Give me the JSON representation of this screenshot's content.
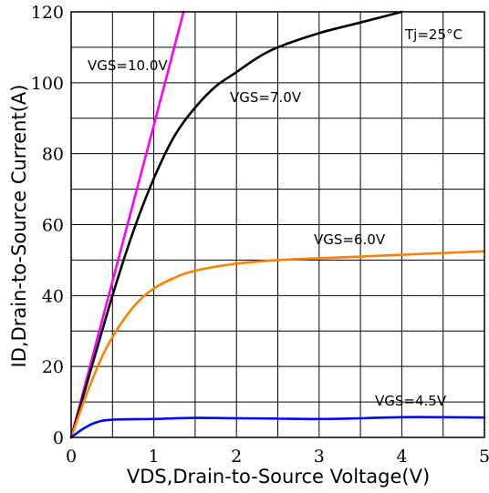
{
  "chart_data": {
    "type": "line",
    "xlabel": "VDS,Drain-to-Source Voltage(V)",
    "ylabel": "ID,Drain-to-Source Current(A)",
    "xlim": [
      0,
      5
    ],
    "ylim": [
      0,
      120
    ],
    "x_ticks": [
      "0",
      "1",
      "2",
      "3",
      "4",
      "5"
    ],
    "y_ticks": [
      "0",
      "20",
      "40",
      "60",
      "80",
      "100",
      "120"
    ],
    "grid": true,
    "annotation": "Tj=25°C",
    "series": [
      {
        "name": "VGS=10.0V",
        "color": "#ff00ff",
        "x": [
          0,
          0.5,
          1.0,
          1.36
        ],
        "y": [
          0,
          44,
          88,
          120
        ]
      },
      {
        "name": "VGS=7.0V",
        "color": "#000000",
        "x": [
          0,
          0.25,
          0.5,
          0.75,
          1.0,
          1.25,
          1.5,
          1.75,
          2.0,
          2.25,
          2.5,
          3.0,
          3.5,
          4.0
        ],
        "y": [
          0,
          20,
          40,
          58,
          73,
          85,
          93,
          99,
          103,
          107,
          110,
          114,
          117,
          120
        ]
      },
      {
        "name": "VGS=6.0V",
        "color": "#ff8000",
        "x": [
          0,
          0.2,
          0.4,
          0.6,
          0.8,
          1.0,
          1.25,
          1.5,
          2.0,
          2.5,
          3.0,
          3.5,
          4.0,
          4.5,
          5.0
        ],
        "y": [
          0,
          13,
          24,
          32,
          38,
          42,
          45,
          47,
          49,
          50,
          50.5,
          51,
          51.5,
          52,
          52.5
        ]
      },
      {
        "name": "VGS=4.5V",
        "color": "#0000ff",
        "x": [
          0,
          0.15,
          0.3,
          0.5,
          1.0,
          1.5,
          2.0,
          2.5,
          3.0,
          3.5,
          4.0,
          4.5,
          5.0
        ],
        "y": [
          0,
          2.5,
          4.2,
          5.0,
          5.2,
          5.5,
          5.4,
          5.3,
          5.2,
          5.4,
          5.7,
          5.7,
          5.6
        ]
      }
    ]
  }
}
